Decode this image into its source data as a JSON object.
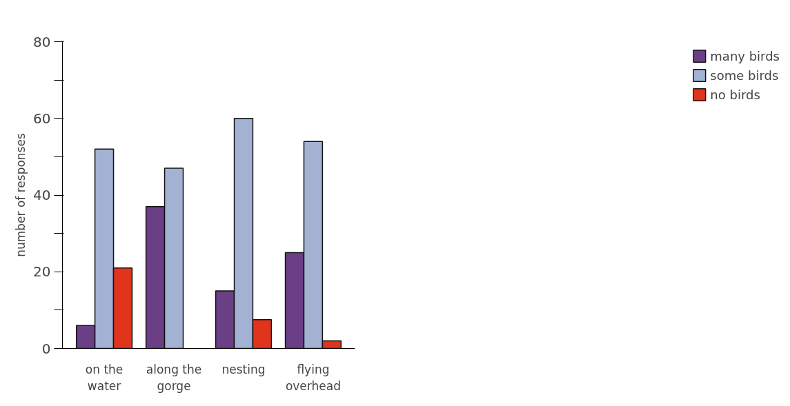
{
  "chart_data": {
    "type": "bar",
    "ylabel": "number of responses",
    "categories": [
      "on the water",
      "along the gorge",
      "nesting",
      "flying overhead"
    ],
    "series": [
      {
        "name": "many birds",
        "color": "#6a3f86",
        "values": [
          6,
          37,
          15,
          25
        ]
      },
      {
        "name": "some birds",
        "color": "#a3b1d3",
        "values": [
          52,
          47,
          60,
          54
        ]
      },
      {
        "name": "no birds",
        "color": "#e0341c",
        "values": [
          21,
          null,
          7.5,
          2
        ]
      }
    ],
    "ylim": [
      0,
      80
    ],
    "yticks": [
      0,
      {
        "value": 10,
        "label": null
      },
      20,
      {
        "value": 30,
        "label": null
      },
      40,
      {
        "value": 50,
        "label": null
      },
      60,
      {
        "value": 70,
        "label": null
      },
      80
    ],
    "grid": false,
    "legend": "top right"
  }
}
